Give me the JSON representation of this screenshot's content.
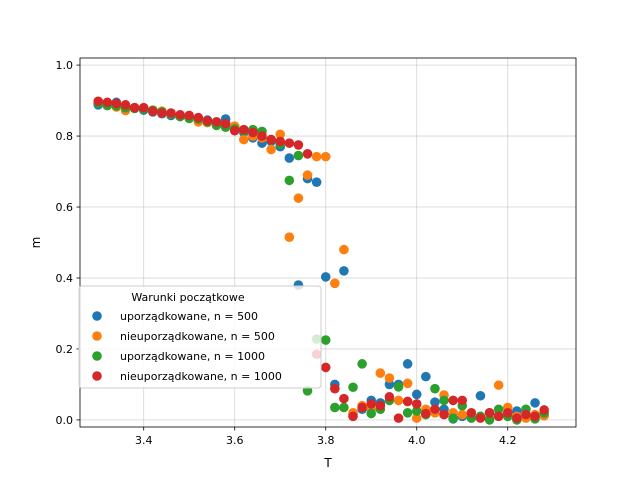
{
  "chart_data": {
    "type": "scatter",
    "xlabel": "T",
    "ylabel": "m",
    "xlim": [
      3.26,
      4.35
    ],
    "ylim": [
      -0.02,
      1.02
    ],
    "xticks": [
      3.4,
      3.6,
      3.8,
      4.0,
      4.2
    ],
    "yticks": [
      0.0,
      0.2,
      0.4,
      0.6,
      0.8,
      1.0
    ],
    "grid": true,
    "legend": {
      "title": "Warunki początkowe",
      "placement": "lower-left"
    },
    "series": [
      {
        "name": "uporządkowane, n = 500",
        "color": "#1f77b4",
        "points": [
          [
            3.3,
            0.888
          ],
          [
            3.32,
            0.892
          ],
          [
            3.34,
            0.895
          ],
          [
            3.36,
            0.884
          ],
          [
            3.38,
            0.878
          ],
          [
            3.4,
            0.873
          ],
          [
            3.42,
            0.868
          ],
          [
            3.44,
            0.863
          ],
          [
            3.46,
            0.858
          ],
          [
            3.48,
            0.856
          ],
          [
            3.5,
            0.853
          ],
          [
            3.52,
            0.85
          ],
          [
            3.54,
            0.845
          ],
          [
            3.56,
            0.84
          ],
          [
            3.58,
            0.848
          ],
          [
            3.6,
            0.825
          ],
          [
            3.62,
            0.81
          ],
          [
            3.64,
            0.795
          ],
          [
            3.66,
            0.78
          ],
          [
            3.68,
            0.785
          ],
          [
            3.7,
            0.77
          ],
          [
            3.72,
            0.738
          ],
          [
            3.74,
            0.38
          ],
          [
            3.76,
            0.68
          ],
          [
            3.78,
            0.67
          ],
          [
            3.8,
            0.403
          ],
          [
            3.82,
            0.1
          ],
          [
            3.84,
            0.42
          ],
          [
            3.86,
            0.016
          ],
          [
            3.88,
            0.03
          ],
          [
            3.9,
            0.055
          ],
          [
            3.92,
            0.048
          ],
          [
            3.94,
            0.1
          ],
          [
            3.96,
            0.1
          ],
          [
            3.98,
            0.158
          ],
          [
            4.0,
            0.072
          ],
          [
            4.02,
            0.122
          ],
          [
            4.04,
            0.05
          ],
          [
            4.06,
            0.03
          ],
          [
            4.08,
            0.003
          ],
          [
            4.1,
            0.01
          ],
          [
            4.12,
            0.008
          ],
          [
            4.14,
            0.068
          ],
          [
            4.16,
            0.02
          ],
          [
            4.18,
            0.012
          ],
          [
            4.2,
            0.018
          ],
          [
            4.22,
            0.025
          ],
          [
            4.24,
            0.015
          ],
          [
            4.26,
            0.048
          ],
          [
            4.28,
            0.012
          ]
        ]
      },
      {
        "name": "nieuporządkowane, n = 500",
        "color": "#ff7f0e",
        "points": [
          [
            3.3,
            0.895
          ],
          [
            3.32,
            0.89
          ],
          [
            3.34,
            0.882
          ],
          [
            3.36,
            0.872
          ],
          [
            3.38,
            0.88
          ],
          [
            3.4,
            0.878
          ],
          [
            3.42,
            0.872
          ],
          [
            3.44,
            0.87
          ],
          [
            3.46,
            0.862
          ],
          [
            3.48,
            0.855
          ],
          [
            3.5,
            0.85
          ],
          [
            3.52,
            0.84
          ],
          [
            3.54,
            0.838
          ],
          [
            3.56,
            0.835
          ],
          [
            3.58,
            0.83
          ],
          [
            3.6,
            0.828
          ],
          [
            3.62,
            0.79
          ],
          [
            3.64,
            0.8
          ],
          [
            3.66,
            0.795
          ],
          [
            3.68,
            0.762
          ],
          [
            3.7,
            0.805
          ],
          [
            3.72,
            0.515
          ],
          [
            3.74,
            0.625
          ],
          [
            3.76,
            0.69
          ],
          [
            3.78,
            0.742
          ],
          [
            3.8,
            0.742
          ],
          [
            3.82,
            0.385
          ],
          [
            3.84,
            0.48
          ],
          [
            3.86,
            0.02
          ],
          [
            3.88,
            0.04
          ],
          [
            3.9,
            0.03
          ],
          [
            3.92,
            0.132
          ],
          [
            3.94,
            0.118
          ],
          [
            3.96,
            0.055
          ],
          [
            3.98,
            0.103
          ],
          [
            4.0,
            0.005
          ],
          [
            4.02,
            0.03
          ],
          [
            4.04,
            0.02
          ],
          [
            4.06,
            0.07
          ],
          [
            4.08,
            0.02
          ],
          [
            4.1,
            0.015
          ],
          [
            4.12,
            0.01
          ],
          [
            4.14,
            0.008
          ],
          [
            4.16,
            0.006
          ],
          [
            4.18,
            0.098
          ],
          [
            4.2,
            0.035
          ],
          [
            4.22,
            0.01
          ],
          [
            4.24,
            0.005
          ],
          [
            4.26,
            0.015
          ],
          [
            4.28,
            0.012
          ]
        ]
      },
      {
        "name": "uporządkowane, n = 1000",
        "color": "#2ca02c",
        "points": [
          [
            3.3,
            0.893
          ],
          [
            3.32,
            0.886
          ],
          [
            3.34,
            0.885
          ],
          [
            3.36,
            0.88
          ],
          [
            3.38,
            0.878
          ],
          [
            3.4,
            0.876
          ],
          [
            3.42,
            0.873
          ],
          [
            3.44,
            0.868
          ],
          [
            3.46,
            0.862
          ],
          [
            3.48,
            0.855
          ],
          [
            3.5,
            0.85
          ],
          [
            3.52,
            0.848
          ],
          [
            3.54,
            0.84
          ],
          [
            3.56,
            0.83
          ],
          [
            3.58,
            0.825
          ],
          [
            3.6,
            0.82
          ],
          [
            3.62,
            0.815
          ],
          [
            3.64,
            0.818
          ],
          [
            3.66,
            0.813
          ],
          [
            3.68,
            0.79
          ],
          [
            3.7,
            0.778
          ],
          [
            3.72,
            0.675
          ],
          [
            3.74,
            0.745
          ],
          [
            3.76,
            0.082
          ],
          [
            3.78,
            0.228
          ],
          [
            3.8,
            0.225
          ],
          [
            3.82,
            0.035
          ],
          [
            3.84,
            0.035
          ],
          [
            3.86,
            0.092
          ],
          [
            3.88,
            0.158
          ],
          [
            3.9,
            0.018
          ],
          [
            3.92,
            0.03
          ],
          [
            3.94,
            0.055
          ],
          [
            3.96,
            0.093
          ],
          [
            3.98,
            0.02
          ],
          [
            4.0,
            0.025
          ],
          [
            4.02,
            0.015
          ],
          [
            4.04,
            0.088
          ],
          [
            4.06,
            0.055
          ],
          [
            4.08,
            0.005
          ],
          [
            4.1,
            0.04
          ],
          [
            4.12,
            0.005
          ],
          [
            4.14,
            0.01
          ],
          [
            4.16,
            0.0
          ],
          [
            4.18,
            0.03
          ],
          [
            4.2,
            0.01
          ],
          [
            4.22,
            0.0
          ],
          [
            4.24,
            0.03
          ],
          [
            4.26,
            0.003
          ],
          [
            4.28,
            0.02
          ]
        ]
      },
      {
        "name": "nieuporządkowane, n = 1000",
        "color": "#d62728",
        "points": [
          [
            3.3,
            0.898
          ],
          [
            3.32,
            0.895
          ],
          [
            3.34,
            0.892
          ],
          [
            3.36,
            0.888
          ],
          [
            3.38,
            0.88
          ],
          [
            3.4,
            0.88
          ],
          [
            3.42,
            0.87
          ],
          [
            3.44,
            0.865
          ],
          [
            3.46,
            0.865
          ],
          [
            3.48,
            0.86
          ],
          [
            3.5,
            0.858
          ],
          [
            3.52,
            0.852
          ],
          [
            3.54,
            0.843
          ],
          [
            3.56,
            0.84
          ],
          [
            3.58,
            0.835
          ],
          [
            3.6,
            0.815
          ],
          [
            3.62,
            0.818
          ],
          [
            3.64,
            0.81
          ],
          [
            3.66,
            0.8
          ],
          [
            3.68,
            0.79
          ],
          [
            3.7,
            0.785
          ],
          [
            3.72,
            0.78
          ],
          [
            3.74,
            0.775
          ],
          [
            3.76,
            0.75
          ],
          [
            3.78,
            0.185
          ],
          [
            3.8,
            0.148
          ],
          [
            3.82,
            0.088
          ],
          [
            3.84,
            0.06
          ],
          [
            3.86,
            0.01
          ],
          [
            3.88,
            0.035
          ],
          [
            3.9,
            0.045
          ],
          [
            3.92,
            0.04
          ],
          [
            3.94,
            0.065
          ],
          [
            3.96,
            0.005
          ],
          [
            3.98,
            0.052
          ],
          [
            4.0,
            0.045
          ],
          [
            4.02,
            0.018
          ],
          [
            4.04,
            0.03
          ],
          [
            4.06,
            0.015
          ],
          [
            4.08,
            0.055
          ],
          [
            4.1,
            0.055
          ],
          [
            4.12,
            0.02
          ],
          [
            4.14,
            0.005
          ],
          [
            4.16,
            0.02
          ],
          [
            4.18,
            0.01
          ],
          [
            4.2,
            0.02
          ],
          [
            4.22,
            0.005
          ],
          [
            4.24,
            0.015
          ],
          [
            4.26,
            0.01
          ],
          [
            4.28,
            0.028
          ]
        ]
      }
    ]
  }
}
